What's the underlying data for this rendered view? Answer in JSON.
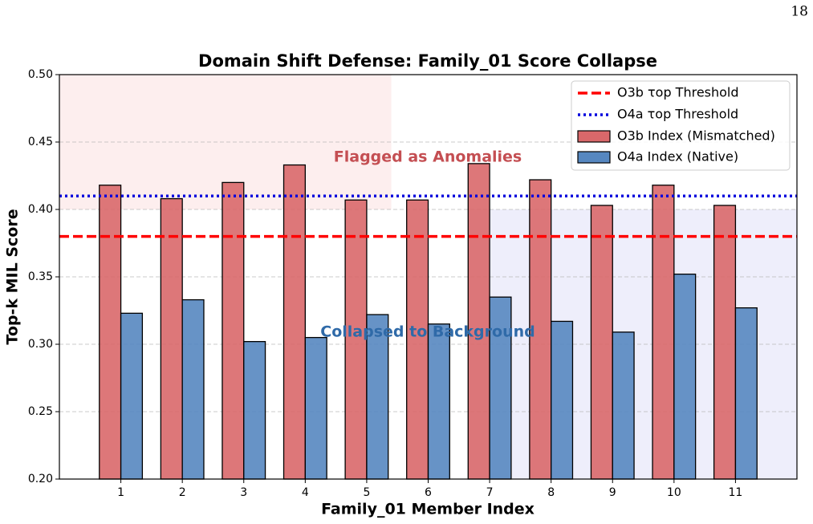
{
  "page_number": "18",
  "chart_data": {
    "type": "bar",
    "title": "Domain Shift Defense: Family_01 Score Collapse",
    "xlabel": "Family_01 Member Index",
    "ylabel": "Top-k MIL Score",
    "categories": [
      "1",
      "2",
      "3",
      "4",
      "5",
      "6",
      "7",
      "8",
      "9",
      "10",
      "11"
    ],
    "series": [
      {
        "name": "O3b Index (Mismatched)",
        "color": "#d9686a",
        "values": [
          0.418,
          0.408,
          0.42,
          0.433,
          0.407,
          0.407,
          0.434,
          0.422,
          0.403,
          0.418,
          0.403
        ]
      },
      {
        "name": "O4a Index (Native)",
        "color": "#5687c0",
        "values": [
          0.323,
          0.333,
          0.302,
          0.305,
          0.322,
          0.315,
          0.335,
          0.317,
          0.309,
          0.352,
          0.327
        ]
      }
    ],
    "hlines": [
      {
        "name": "O3b τop Threshold",
        "color": "#ff0000",
        "style": "dashed",
        "value": 0.38
      },
      {
        "name": "O4a τop Threshold",
        "color": "#0000dd",
        "style": "dotted",
        "value": 0.41
      }
    ],
    "spans": [
      {
        "x": [
          0,
          5.4
        ],
        "y": [
          0.4,
          0.5
        ],
        "color": "#fdeeee"
      },
      {
        "x": [
          6.65,
          12
        ],
        "y": [
          0.2,
          0.4
        ],
        "color": "#eeeefb"
      }
    ],
    "annotations": [
      {
        "text": "Flagged as Anomalies",
        "color": "#c44e52"
      },
      {
        "text": "Collapsed to Background",
        "color": "#2f6aa8"
      }
    ],
    "xlim": [
      0,
      12
    ],
    "ylim": [
      0.2,
      0.5
    ],
    "yticks": [
      {
        "value": 0.2,
        "label": "0.20"
      },
      {
        "value": 0.25,
        "label": "0.25"
      },
      {
        "value": 0.3,
        "label": "0.30"
      },
      {
        "value": 0.35,
        "label": "0.35"
      },
      {
        "value": 0.4,
        "label": "0.40"
      },
      {
        "value": 0.45,
        "label": "0.45"
      },
      {
        "value": 0.5,
        "label": "0.50"
      }
    ],
    "grid": true,
    "legend": "upper right"
  }
}
